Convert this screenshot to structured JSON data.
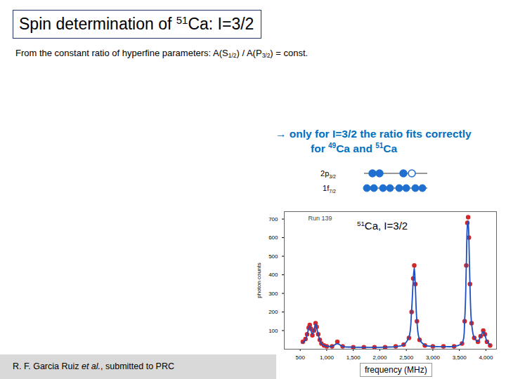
{
  "page": {
    "title": [
      {
        "text": "Spin determination of "
      },
      {
        "text": "51",
        "sup": true
      },
      {
        "text": "Ca: I=3/2"
      }
    ],
    "statement": [
      {
        "text": "From the constant ratio of hyperfine parameters:  A(S"
      },
      {
        "text": "1/2",
        "sub": true
      },
      {
        "text": ") / A(P"
      },
      {
        "text": "3/2",
        "sub": true
      },
      {
        "text": ") = const."
      }
    ],
    "conclusion_line1": [
      {
        "text": "→ only for I=3/2 the ratio fits correctly"
      }
    ],
    "conclusion_line2": [
      {
        "text": "for "
      },
      {
        "text": "49",
        "sup": true
      },
      {
        "text": "Ca and "
      },
      {
        "text": "51",
        "sup": true
      },
      {
        "text": "Ca"
      }
    ],
    "shells": [
      {
        "label": [
          {
            "text": "2p"
          },
          {
            "text": "3/2",
            "sub": true
          }
        ]
      },
      {
        "label": [
          {
            "text": "1f"
          },
          {
            "text": "7/2",
            "sub": true
          }
        ]
      }
    ],
    "caption": [
      {
        "text": "R. F. Garcia Ruiz "
      },
      {
        "text": "et al.",
        "italic": true
      },
      {
        "text": ", submitted to PRC"
      }
    ]
  },
  "chart_data": {
    "type": "scatter",
    "run_label": "Run 139",
    "annotation": [
      {
        "text": "51",
        "sup": true
      },
      {
        "text": "Ca, I=3/2"
      }
    ],
    "ylabel": "photon counts",
    "xlabel": "frequency (MHz)",
    "x": [
      550,
      600,
      630,
      660,
      680,
      700,
      730,
      760,
      790,
      810,
      840,
      870,
      900,
      950,
      1000,
      1100,
      1200,
      1300,
      1500,
      1700,
      1900,
      2100,
      2300,
      2450,
      2550,
      2600,
      2630,
      2650,
      2670,
      2700,
      2750,
      2850,
      3000,
      3200,
      3400,
      3550,
      3600,
      3630,
      3650,
      3665,
      3680,
      3700,
      3730,
      3780,
      3850,
      3900,
      3950,
      3980,
      4020,
      4080
    ],
    "series": [
      {
        "type": "scatter",
        "color": "#d62728",
        "marker": "circle",
        "values": [
          40,
          55,
          80,
          115,
          130,
          110,
          75,
          100,
          140,
          120,
          80,
          50,
          30,
          20,
          15,
          15,
          40,
          15,
          10,
          10,
          10,
          10,
          15,
          25,
          60,
          200,
          380,
          450,
          350,
          150,
          50,
          20,
          15,
          15,
          15,
          30,
          150,
          450,
          680,
          710,
          600,
          350,
          140,
          60,
          40,
          70,
          100,
          80,
          40,
          20
        ]
      },
      {
        "type": "line",
        "color": "#1f4fbf",
        "line_style": "solid",
        "values": [
          35,
          50,
          78,
          112,
          125,
          105,
          80,
          105,
          135,
          115,
          78,
          48,
          30,
          20,
          16,
          15,
          30,
          15,
          11,
          10,
          10,
          11,
          14,
          24,
          65,
          210,
          370,
          440,
          340,
          150,
          52,
          22,
          15,
          14,
          15,
          32,
          160,
          440,
          660,
          690,
          590,
          340,
          140,
          62,
          42,
          68,
          95,
          78,
          42,
          22
        ]
      }
    ],
    "xlim": [
      200,
      4200
    ],
    "ylim": [
      0,
      740
    ],
    "xticks": [
      500,
      1000,
      1500,
      2000,
      2500,
      3000,
      3500,
      4000
    ],
    "yticks": [
      100,
      200,
      300,
      400,
      500,
      600,
      700
    ],
    "grid": false
  }
}
